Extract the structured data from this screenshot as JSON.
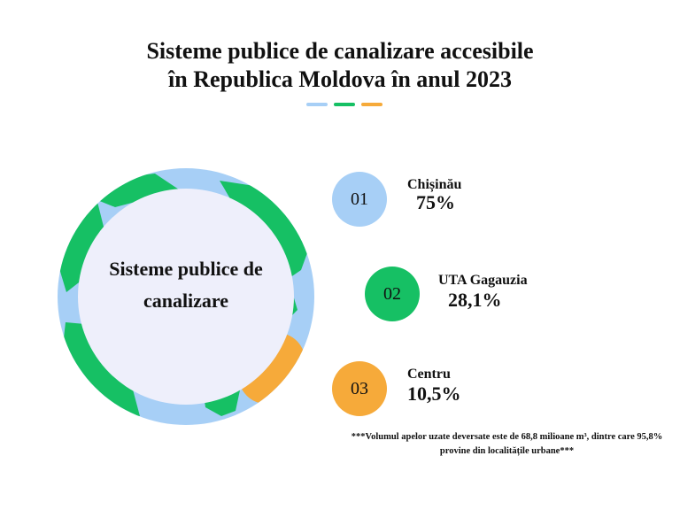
{
  "title": {
    "line1": "Sisteme publice de canalizare accesibile",
    "line2": "în Republica Moldova în anul 2023"
  },
  "center_label": {
    "line1": "Sisteme publice de",
    "line2": "canalizare"
  },
  "colors": {
    "blue": "#a7cff6",
    "green": "#16c064",
    "orange": "#f6aa3a",
    "inner": "#eeeffb"
  },
  "chart_data": {
    "type": "table",
    "title": "Sisteme publice de canalizare accesibile în Republica Moldova în anul 2023",
    "items": [
      {
        "number": "01",
        "region": "Chișinău",
        "value_label": "75%",
        "value": 75,
        "color": "#a7cff6"
      },
      {
        "number": "02",
        "region": "UTA Gagauzia",
        "value_label": "28,1%",
        "value": 28.1,
        "color": "#16c064"
      },
      {
        "number": "03",
        "region": "Centru",
        "value_label": "10,5%",
        "value": 10.5,
        "color": "#f6aa3a"
      }
    ]
  },
  "footnote": {
    "line1": "***Volumul apelor uzate deversate este de 68,8 milioane m³, dintre care 95,8%",
    "line2": "provine din localitățile urbane***"
  }
}
